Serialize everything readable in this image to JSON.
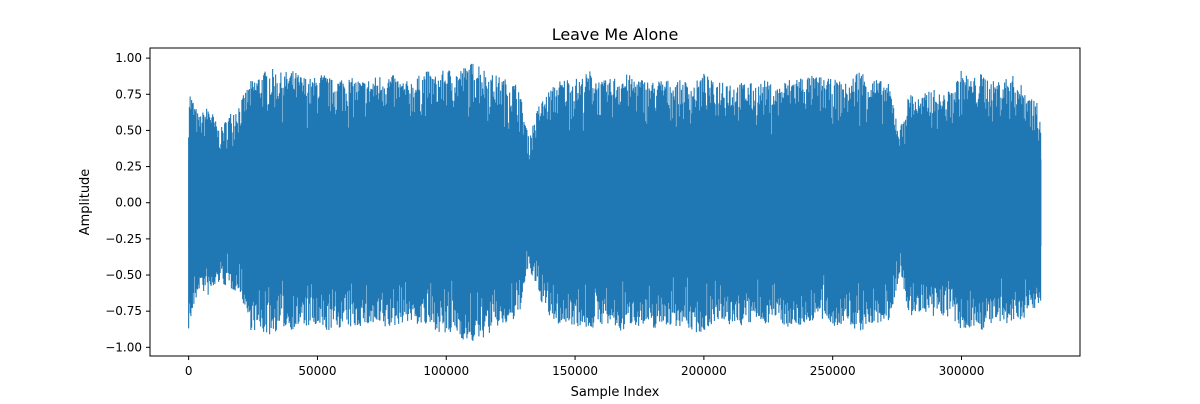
{
  "chart_data": {
    "type": "line",
    "title": "Leave Me Alone",
    "xlabel": "Sample Index",
    "ylabel": "Amplitude",
    "xlim": [
      -15000,
      346000
    ],
    "ylim": [
      -1.06,
      1.07
    ],
    "x_ticks": [
      0,
      50000,
      100000,
      150000,
      200000,
      250000,
      300000
    ],
    "x_tick_labels": [
      "0",
      "50000",
      "100000",
      "150000",
      "200000",
      "250000",
      "300000"
    ],
    "y_ticks": [
      -1.0,
      -0.75,
      -0.5,
      -0.25,
      0.0,
      0.25,
      0.5,
      0.75,
      1.0
    ],
    "y_tick_labels": [
      "−1.00",
      "−0.75",
      "−0.50",
      "−0.25",
      "0.00",
      "0.25",
      "0.50",
      "0.75",
      "1.00"
    ],
    "grid": false,
    "legend": "none",
    "series": [
      {
        "color": "#1f77b4",
        "x": [
          0,
          4000,
          8000,
          12000,
          16000,
          20000,
          24000,
          28000,
          32000,
          36000,
          40000,
          44000,
          48000,
          52000,
          56000,
          60000,
          64000,
          68000,
          72000,
          76000,
          80000,
          84000,
          88000,
          92000,
          96000,
          100000,
          104000,
          108000,
          112000,
          116000,
          120000,
          124000,
          128000,
          132000,
          136000,
          140000,
          144000,
          148000,
          152000,
          156000,
          160000,
          164000,
          168000,
          172000,
          176000,
          180000,
          184000,
          188000,
          192000,
          196000,
          200000,
          204000,
          208000,
          212000,
          216000,
          220000,
          224000,
          228000,
          232000,
          236000,
          240000,
          244000,
          248000,
          252000,
          256000,
          260000,
          264000,
          268000,
          272000,
          276000,
          280000,
          284000,
          288000,
          292000,
          296000,
          300000,
          304000,
          308000,
          312000,
          316000,
          320000,
          324000,
          328000,
          331000
        ],
        "max": [
          0.8,
          0.6,
          0.68,
          0.5,
          0.62,
          0.7,
          0.84,
          0.9,
          0.93,
          0.9,
          0.92,
          0.88,
          0.86,
          0.9,
          0.85,
          0.88,
          0.86,
          0.85,
          0.87,
          0.9,
          0.88,
          0.84,
          0.86,
          0.92,
          0.88,
          0.93,
          0.92,
          0.95,
          0.99,
          0.9,
          0.88,
          0.85,
          0.82,
          0.45,
          0.68,
          0.78,
          0.85,
          0.87,
          0.86,
          0.92,
          0.84,
          0.86,
          0.9,
          0.88,
          0.86,
          0.84,
          0.86,
          0.84,
          0.85,
          0.82,
          0.9,
          0.83,
          0.88,
          0.82,
          0.84,
          0.82,
          0.85,
          0.8,
          0.85,
          0.88,
          0.88,
          0.88,
          0.86,
          0.85,
          0.82,
          0.93,
          0.88,
          0.85,
          0.82,
          0.5,
          0.78,
          0.72,
          0.8,
          0.75,
          0.78,
          0.92,
          0.86,
          0.9,
          0.84,
          0.86,
          0.88,
          0.8,
          0.72,
          0.65
        ],
        "min": [
          -0.88,
          -0.6,
          -0.65,
          -0.55,
          -0.6,
          -0.62,
          -0.88,
          -0.9,
          -0.92,
          -0.86,
          -0.88,
          -0.86,
          -0.86,
          -0.9,
          -0.88,
          -0.86,
          -0.87,
          -0.85,
          -0.86,
          -0.88,
          -0.86,
          -0.82,
          -0.84,
          -0.86,
          -0.88,
          -0.93,
          -0.9,
          -0.98,
          -0.96,
          -0.92,
          -0.86,
          -0.85,
          -0.8,
          -0.45,
          -0.65,
          -0.8,
          -0.85,
          -0.84,
          -0.86,
          -0.88,
          -0.84,
          -0.86,
          -0.9,
          -0.84,
          -0.86,
          -0.88,
          -0.84,
          -0.86,
          -0.85,
          -0.9,
          -0.9,
          -0.82,
          -0.86,
          -0.84,
          -0.86,
          -0.82,
          -0.84,
          -0.8,
          -0.86,
          -0.86,
          -0.84,
          -0.8,
          -0.84,
          -0.86,
          -0.84,
          -0.9,
          -0.86,
          -0.84,
          -0.82,
          -0.5,
          -0.8,
          -0.75,
          -0.82,
          -0.78,
          -0.8,
          -0.9,
          -0.86,
          -0.88,
          -0.84,
          -0.86,
          -0.84,
          -0.8,
          -0.75,
          -0.7
        ]
      }
    ]
  }
}
